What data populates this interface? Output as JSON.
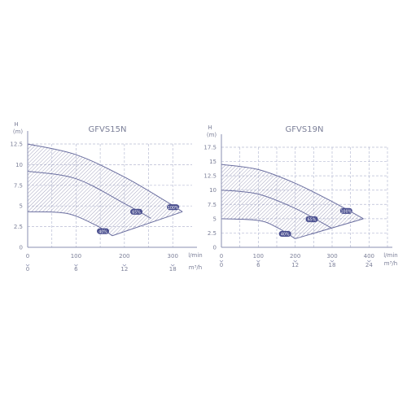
{
  "colors": {
    "axis": "#8a8fb0",
    "grid": "#b8bcd4",
    "text": "#7b7f98",
    "curve": "#6b6fa0",
    "hatch": "#9a9ab8",
    "label_fill": "#4a4f8f",
    "label_text": "#ffffff"
  },
  "chart_data": [
    {
      "type": "area",
      "title": "GFVS15N",
      "ylabel_line1": "H",
      "ylabel_line2": "(m)",
      "xlabel_primary": "l/min",
      "xlabel_secondary": "m³/h",
      "x_ticks": [
        "0",
        "100",
        "200",
        "300"
      ],
      "x2_ticks": [
        "0",
        "6",
        "12",
        "18"
      ],
      "y_ticks": [
        "0",
        "2.5",
        "5",
        "7.5",
        "10",
        "12.5"
      ],
      "xlim": [
        0,
        340
      ],
      "ylim": [
        0,
        12.5
      ],
      "grid": true,
      "series": [
        {
          "name": "100%",
          "x": [
            0,
            100,
            200,
            285,
            320
          ],
          "y": [
            12.5,
            11.2,
            8.5,
            5.6,
            4.3
          ]
        },
        {
          "name": "65%",
          "x": [
            0,
            100,
            200,
            255
          ],
          "y": [
            9.2,
            8.3,
            5.3,
            3.5
          ]
        },
        {
          "name": "40%",
          "x": [
            0,
            80,
            140,
            175
          ],
          "y": [
            4.3,
            4.1,
            2.7,
            1.4
          ]
        }
      ]
    },
    {
      "type": "area",
      "title": "GFVS19N",
      "ylabel_line1": "H",
      "ylabel_line2": "(m)",
      "xlabel_primary": "l/min",
      "xlabel_secondary": "m³/h",
      "x_ticks": [
        "0",
        "100",
        "200",
        "300",
        "400"
      ],
      "x2_ticks": [
        "0",
        "6",
        "12",
        "18",
        "24"
      ],
      "y_ticks": [
        "0",
        "2.5",
        "5",
        "7.5",
        "10",
        "12.5",
        "15",
        "17.5"
      ],
      "xlim": [
        0,
        450
      ],
      "ylim": [
        0,
        17.5
      ],
      "grid": true,
      "series": [
        {
          "name": "100%",
          "x": [
            0,
            100,
            200,
            300,
            385
          ],
          "y": [
            14.5,
            13.6,
            11.2,
            8.0,
            5.0
          ]
        },
        {
          "name": "65%",
          "x": [
            0,
            100,
            200,
            300
          ],
          "y": [
            10.0,
            9.3,
            6.8,
            3.3
          ]
        },
        {
          "name": "40%",
          "x": [
            0,
            100,
            150,
            200
          ],
          "y": [
            5.0,
            4.7,
            3.5,
            1.5
          ]
        }
      ]
    }
  ]
}
